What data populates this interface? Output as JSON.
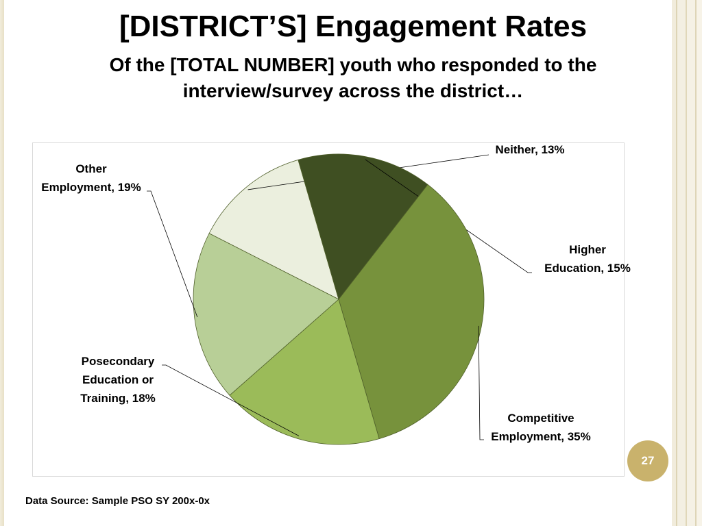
{
  "slide": {
    "title": "[DISTRICT’S] Engagement Rates",
    "subtitle_line1": "Of the [TOTAL NUMBER] youth who responded to the",
    "subtitle_line2": "interview/survey across the district…",
    "page_number": "27",
    "footer": "Data Source: Sample PSO SY 200x-0x"
  },
  "chart_data": {
    "type": "pie",
    "title": "",
    "slices": [
      {
        "label": "Neither, 13%",
        "value": 13,
        "color": "#ebefde"
      },
      {
        "label": "Higher Education, 15%",
        "value": 15,
        "color": "#3f4f22"
      },
      {
        "label": "Competitive Employment, 35%",
        "value": 35,
        "color": "#77923c"
      },
      {
        "label": "Posecondary Education or Training, 18%",
        "value": 18,
        "color": "#9bbb59"
      },
      {
        "label": "Other Employment, 19%",
        "value": 19,
        "color": "#b8cf97"
      }
    ],
    "label_lines": [
      [
        "Neither, 13%"
      ],
      [
        "Higher",
        "Education,  15%"
      ],
      [
        "Competitive",
        "Employment, 35%"
      ],
      [
        "Posecondary",
        "Education or",
        "Training, 18%"
      ],
      [
        "Other",
        "Employment, 19%"
      ]
    ],
    "legend": "none"
  }
}
